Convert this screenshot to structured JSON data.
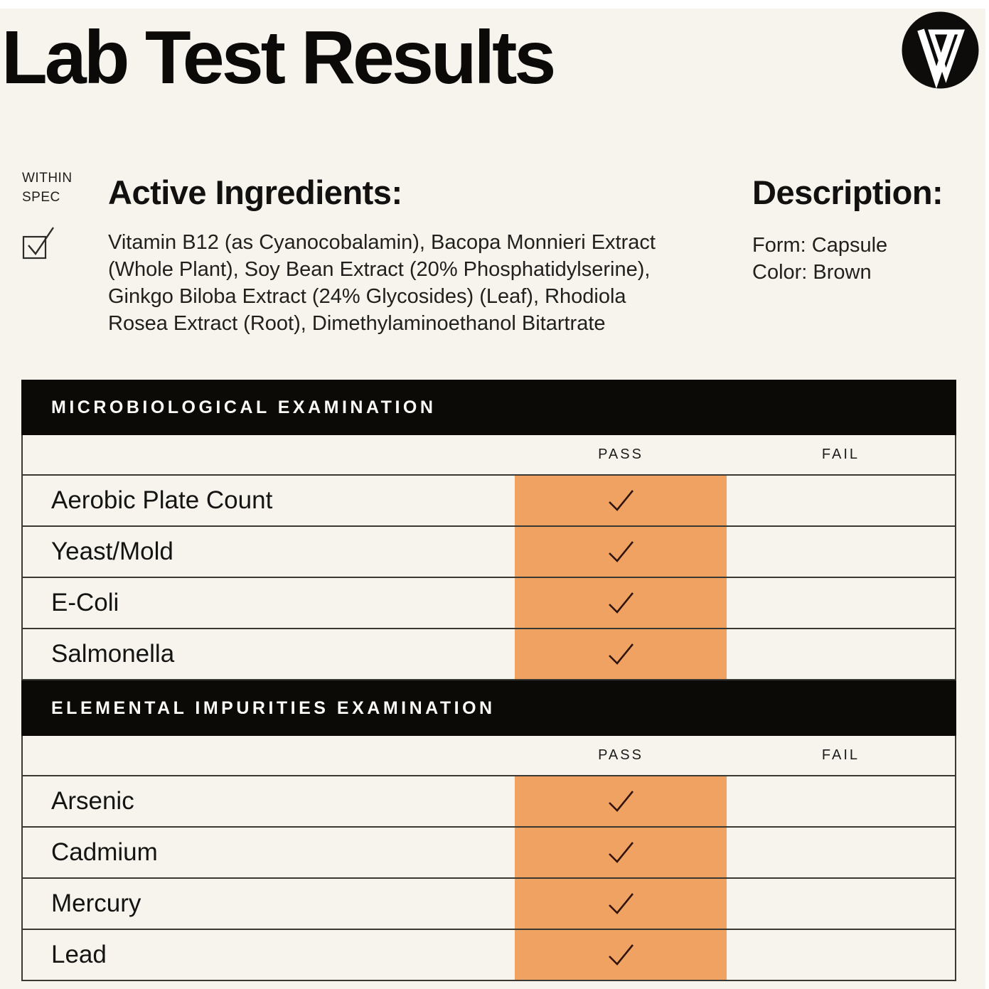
{
  "title": "Lab Test Results",
  "logo": {
    "name": "brand-v-logo"
  },
  "within_spec": {
    "line1": "WITHIN",
    "line2": "SPEC",
    "checked": true
  },
  "active_ingredients": {
    "heading": "Active Ingredients:",
    "text": "Vitamin B12 (as Cyanocobalamin), Bacopa Monnieri Extract (Whole Plant), Soy Bean Extract (20% Phosphatidylserine), Ginkgo Biloba Extract (24% Glycosides) (Leaf), Rhodiola Rosea Extract (Root), Dimethylaminoethanol Bitartrate"
  },
  "description": {
    "heading": "Description:",
    "form": "Form: Capsule",
    "color": "Color: Brown"
  },
  "tables": [
    {
      "title": "MICROBIOLOGICAL EXAMINATION",
      "columns": [
        "PASS",
        "FAIL"
      ],
      "rows": [
        {
          "label": "Aerobic Plate Count",
          "result": "pass"
        },
        {
          "label": "Yeast/Mold",
          "result": "pass"
        },
        {
          "label": "E-Coli",
          "result": "pass"
        },
        {
          "label": "Salmonella",
          "result": "pass"
        }
      ]
    },
    {
      "title": "ELEMENTAL IMPURITIES EXAMINATION",
      "columns": [
        "PASS",
        "FAIL"
      ],
      "rows": [
        {
          "label": "Arsenic",
          "result": "pass"
        },
        {
          "label": "Cadmium",
          "result": "pass"
        },
        {
          "label": "Mercury",
          "result": "pass"
        },
        {
          "label": "Lead",
          "result": "pass"
        }
      ]
    }
  ],
  "colors": {
    "background": "#F7F4EE",
    "accent_orange": "#F0A263",
    "bar_black": "#0B0A07",
    "check_mark": "#30130A",
    "border": "#3A3833"
  }
}
